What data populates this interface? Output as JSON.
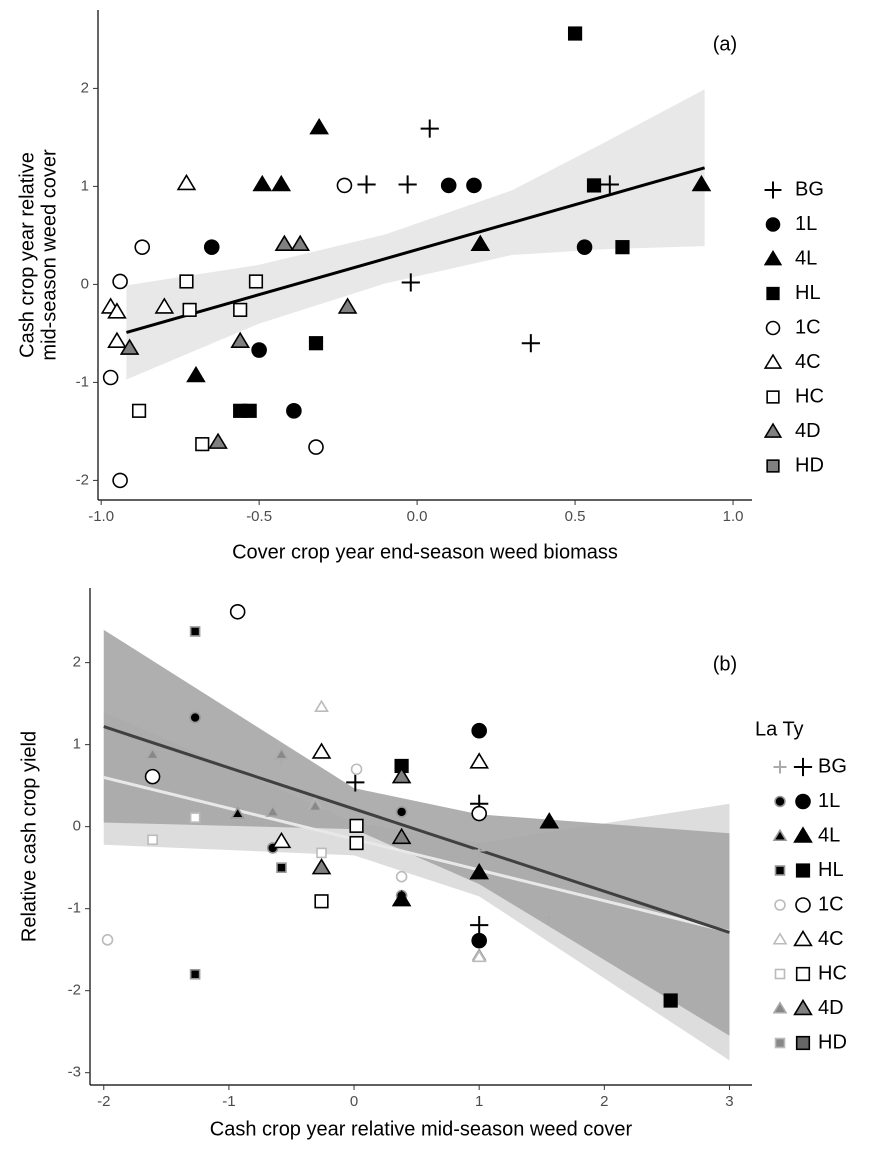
{
  "chart_data": [
    {
      "type": "scatter",
      "panel_label": "(a)",
      "xlabel": "Cover crop year end-season weed biomass",
      "ylabel": [
        "Cash crop year relative",
        "mid-season weed cover"
      ],
      "xlim": [
        -1.01,
        1.06
      ],
      "ylim": [
        -2.2,
        2.8
      ],
      "xticks": [
        {
          "value": -1,
          "label": "-1.0"
        },
        -0.5,
        {
          "value": 0,
          "label": "0.0"
        },
        0.5,
        {
          "value": 1,
          "label": "1.0"
        }
      ],
      "yticks": [
        -2,
        -1,
        0,
        1,
        2
      ],
      "series": [
        {
          "name": "BG",
          "marker": "plus",
          "fill": "none",
          "stroke": "#000000",
          "x": [
            0.04,
            -0.16,
            -0.03,
            0.61,
            -0.02,
            0.36
          ],
          "y": [
            1.59,
            1.02,
            1.02,
            1.02,
            0.02,
            -0.6
          ]
        },
        {
          "name": "1L",
          "marker": "circle",
          "fill": "#000000",
          "stroke": "#000000",
          "x": [
            -0.65,
            0.1,
            0.18,
            0.53,
            -0.5,
            -0.39
          ],
          "y": [
            0.38,
            1.01,
            1.01,
            0.38,
            -0.67,
            -1.29
          ]
        },
        {
          "name": "4L",
          "marker": "triangle",
          "fill": "#000000",
          "stroke": "#000000",
          "x": [
            -0.31,
            -0.49,
            -0.43,
            0.2,
            0.9,
            -0.7
          ],
          "y": [
            1.6,
            1.02,
            1.02,
            0.41,
            1.02,
            -0.93
          ]
        },
        {
          "name": "HL",
          "marker": "square",
          "fill": "#000000",
          "stroke": "#000000",
          "x": [
            0.5,
            0.56,
            0.65,
            -0.32,
            -0.56,
            -0.53
          ],
          "y": [
            2.56,
            1.01,
            0.38,
            -0.6,
            -1.29,
            -1.29
          ]
        },
        {
          "name": "1C",
          "marker": "circle",
          "fill": "#ffffff",
          "stroke": "#000000",
          "x": [
            -0.87,
            -0.94,
            -0.23,
            -0.97,
            -0.32,
            -0.94
          ],
          "y": [
            0.38,
            0.03,
            1.01,
            -0.95,
            -1.66,
            -2.0
          ]
        },
        {
          "name": "4C",
          "marker": "triangle",
          "fill": "#ffffff",
          "stroke": "#000000",
          "x": [
            -0.73,
            -0.97,
            -0.95,
            -0.8,
            -0.95
          ],
          "y": [
            1.03,
            -0.23,
            -0.28,
            -0.23,
            -0.58
          ]
        },
        {
          "name": "HC",
          "marker": "square",
          "fill": "#ffffff",
          "stroke": "#000000",
          "x": [
            -0.73,
            -0.72,
            -0.51,
            -0.56,
            -0.88,
            -0.68
          ],
          "y": [
            0.03,
            -0.26,
            0.03,
            -0.26,
            -1.29,
            -1.63
          ]
        },
        {
          "name": "4D",
          "marker": "triangle",
          "fill": "#808080",
          "stroke": "#000000",
          "x": [
            -0.91,
            -0.42,
            -0.37,
            -0.22,
            -0.56,
            -0.63
          ],
          "y": [
            -0.65,
            0.41,
            0.41,
            -0.23,
            -0.58,
            -1.61
          ]
        },
        {
          "name": "HD",
          "marker": "square",
          "fill": "#808080",
          "stroke": "#000000",
          "x": [],
          "y": []
        }
      ],
      "fits": [
        {
          "line_color": "#000000",
          "band_color": "#e6e6e6",
          "x": [
            -0.92,
            0.91
          ],
          "y": [
            -0.49,
            1.19
          ],
          "band": {
            "x": [
              -0.92,
              -0.5,
              -0.1,
              0.3,
              0.6,
              0.91
            ],
            "lower": [
              -0.97,
              -0.4,
              0.01,
              0.3,
              0.36,
              0.39
            ],
            "upper": [
              -0.01,
              0.2,
              0.51,
              0.96,
              1.46,
              1.99
            ]
          }
        }
      ]
    },
    {
      "type": "scatter",
      "panel_label": "(b)",
      "xlabel": "Cash crop year relative mid-season weed cover",
      "ylabel": [
        "Relative cash crop yield"
      ],
      "legend_title": "La Ty",
      "xlim": [
        -2.11,
        3.18
      ],
      "ylim": [
        -3.15,
        2.91
      ],
      "xticks": [
        -2,
        -1,
        0,
        1,
        2,
        3
      ],
      "yticks": [
        -3,
        -2,
        -1,
        0,
        1,
        2
      ],
      "series": [
        {
          "name": "BG",
          "marker": "plus",
          "la": {
            "fill": "none",
            "stroke": "#aaaaaa",
            "x": [
              -0.58,
              1.0,
              1.56
            ],
            "y": [
              0.84,
              -0.29,
              -1.11
            ]
          },
          "ty": {
            "fill": "none",
            "stroke": "#000000",
            "x": [
              0.01,
              1.0,
              1.0
            ],
            "y": [
              0.54,
              0.28,
              -1.2
            ]
          }
        },
        {
          "name": "1L",
          "marker": "circle",
          "la": {
            "fill": "#000000",
            "stroke": "#999999",
            "x": [
              -1.27,
              -0.65,
              0.38,
              0.38
            ],
            "y": [
              1.33,
              -0.26,
              0.18,
              -0.84
            ]
          },
          "ty": {
            "fill": "#000000",
            "stroke": "#000000",
            "x": [
              1.0,
              1.0
            ],
            "y": [
              1.17,
              -1.39
            ]
          }
        },
        {
          "name": "4L",
          "marker": "triangle",
          "la": {
            "fill": "#000000",
            "stroke": "#999999",
            "x": [
              -0.93,
              1.0
            ],
            "y": [
              0.16,
              -1.57
            ]
          },
          "ty": {
            "fill": "#000000",
            "stroke": "#000000",
            "x": [
              0.38,
              1.0,
              1.56
            ],
            "y": [
              -0.89,
              -0.56,
              0.06
            ]
          }
        },
        {
          "name": "HL",
          "marker": "square",
          "la": {
            "fill": "#000000",
            "stroke": "#999999",
            "x": [
              -1.27,
              -1.27,
              -0.58
            ],
            "y": [
              2.38,
              -1.8,
              -0.5
            ]
          },
          "ty": {
            "fill": "#000000",
            "stroke": "#000000",
            "x": [
              0.38,
              2.53
            ],
            "y": [
              0.74,
              -2.12
            ]
          }
        },
        {
          "name": "1C",
          "marker": "circle",
          "la": {
            "fill": "#ffffff",
            "stroke": "#bbbbbb",
            "x": [
              -1.97,
              0.02,
              0.38
            ],
            "y": [
              -1.38,
              0.7,
              -0.61
            ]
          },
          "ty": {
            "fill": "#ffffff",
            "stroke": "#000000",
            "x": [
              -0.93,
              -1.61,
              1.0
            ],
            "y": [
              2.62,
              0.61,
              0.16
            ]
          }
        },
        {
          "name": "4C",
          "marker": "triangle",
          "la": {
            "fill": "#ffffff",
            "stroke": "#bbbbbb",
            "x": [
              -0.26,
              -0.31,
              1.0,
              1.0
            ],
            "y": [
              1.46,
              0.27,
              0.79,
              -1.59
            ]
          },
          "ty": {
            "fill": "#ffffff",
            "stroke": "#000000",
            "x": [
              -0.26,
              -0.58,
              1.0
            ],
            "y": [
              0.91,
              -0.18,
              0.79
            ]
          }
        },
        {
          "name": "HC",
          "marker": "square",
          "la": {
            "fill": "#ffffff",
            "stroke": "#bbbbbb",
            "x": [
              -1.27,
              -1.61,
              -0.26
            ],
            "y": [
              0.11,
              -0.16,
              -0.32
            ]
          },
          "ty": {
            "fill": "#ffffff",
            "stroke": "#000000",
            "x": [
              -0.26,
              0.02,
              0.02
            ],
            "y": [
              -0.91,
              0.01,
              -0.2
            ]
          }
        },
        {
          "name": "4D",
          "marker": "triangle",
          "la": {
            "fill": "#888888",
            "stroke": "#aaaaaa",
            "x": [
              -1.61,
              -0.65,
              -0.58,
              -0.31
            ],
            "y": [
              0.88,
              0.18,
              0.88,
              0.25
            ]
          },
          "ty": {
            "fill": "#808080",
            "stroke": "#000000",
            "x": [
              -0.26,
              0.38,
              0.38
            ],
            "y": [
              -0.5,
              0.61,
              -0.13
            ]
          }
        },
        {
          "name": "HD",
          "marker": "square",
          "la": {
            "fill": "#888888",
            "stroke": "#bbbbbb",
            "x": [],
            "y": []
          },
          "ty": {
            "fill": "#666666",
            "stroke": "#000000",
            "x": [],
            "y": []
          }
        }
      ],
      "fits": [
        {
          "line_color": "#e8e8e8",
          "band_color": "#d9d9d9",
          "x": [
            -2,
            3
          ],
          "y": [
            0.6,
            -1.28
          ],
          "band": {
            "x": [
              -2,
              0,
              1,
              3
            ],
            "lower": [
              -0.22,
              -0.35,
              -0.85,
              -2.85
            ],
            "upper": [
              1.4,
              0.05,
              -0.2,
              0.28
            ]
          }
        },
        {
          "line_color": "#404040",
          "band_color": "#a6a6a6",
          "x": [
            -2,
            3
          ],
          "y": [
            1.22,
            -1.29
          ],
          "band": {
            "x": [
              -2,
              0,
              1,
              3
            ],
            "lower": [
              0.05,
              -0.03,
              -0.7,
              -2.55
            ],
            "upper": [
              2.4,
              0.47,
              0.15,
              -0.08
            ]
          }
        }
      ]
    }
  ]
}
